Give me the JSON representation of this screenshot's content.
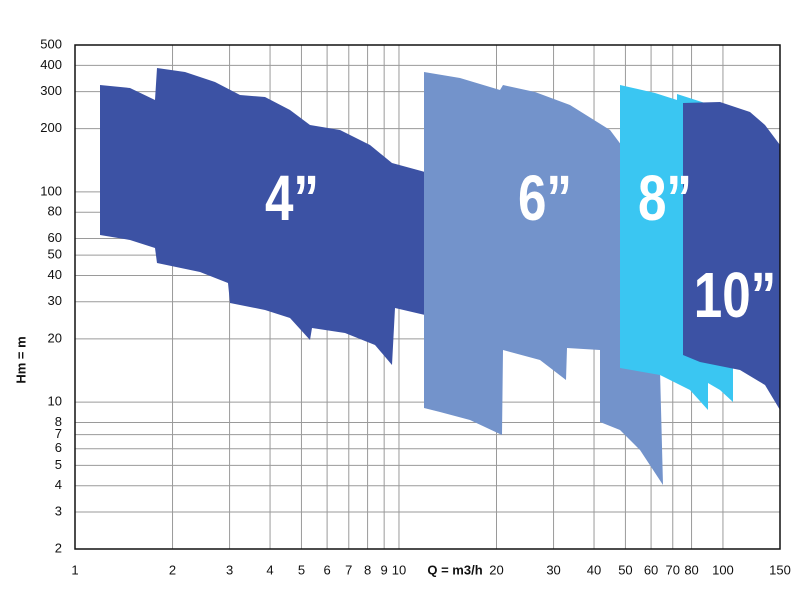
{
  "chart_data": {
    "type": "log-range",
    "ylabel": "Hm = m",
    "xlabel": "Q = m3/h",
    "xlim": [
      1,
      150
    ],
    "ylim": [
      2,
      500
    ],
    "log": true,
    "grid": true,
    "xticks": [
      1,
      2,
      3,
      4,
      5,
      6,
      7,
      8,
      9,
      10,
      20,
      30,
      40,
      50,
      60,
      70,
      80,
      100,
      150
    ],
    "yticks": [
      2,
      3,
      4,
      5,
      6,
      7,
      8,
      10,
      20,
      30,
      40,
      50,
      60,
      80,
      100,
      200,
      300,
      400,
      500
    ],
    "series": [
      {
        "name": "4”",
        "color": "#3c52a4"
      },
      {
        "name": "6”",
        "color": "#7393cb"
      },
      {
        "name": "8”",
        "color": "#3ac6f2"
      },
      {
        "name": "10”",
        "color": "#3c52a4"
      }
    ]
  }
}
